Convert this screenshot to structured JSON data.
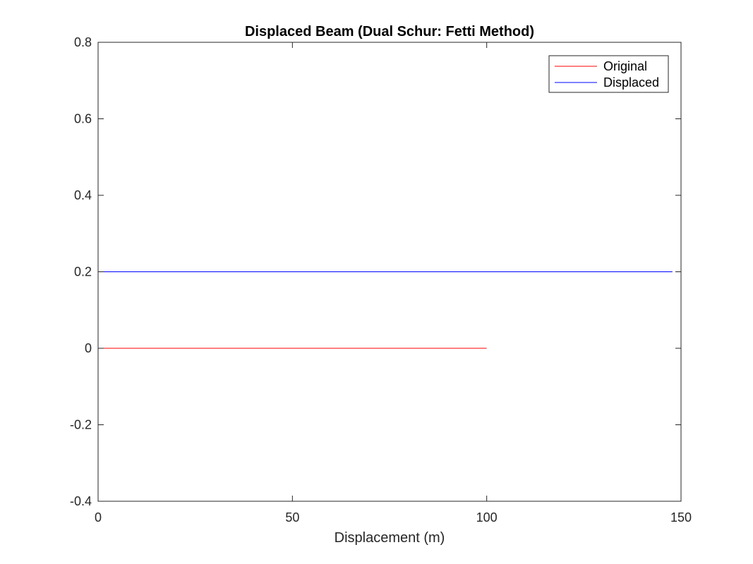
{
  "chart_data": {
    "type": "line",
    "title": "Displaced Beam (Dual Schur: Fetti Method)",
    "xlabel": "Displacement (m)",
    "ylabel": "",
    "xlim": [
      0,
      150
    ],
    "ylim": [
      -0.4,
      0.8
    ],
    "xticks": [
      0,
      50,
      100,
      150
    ],
    "xtick_labels": [
      "0",
      "50",
      "100",
      "150"
    ],
    "yticks": [
      -0.4,
      -0.2,
      0,
      0.2,
      0.4,
      0.6,
      0.8
    ],
    "ytick_labels": [
      "-0.4",
      "-0.2",
      "0",
      "0.2",
      "0.4",
      "0.6",
      "0.8"
    ],
    "grid": false,
    "legend_position": "top-right",
    "series": [
      {
        "name": "Original",
        "color": "#ff0000",
        "x": [
          0,
          100
        ],
        "y": [
          0,
          0
        ]
      },
      {
        "name": "Displaced",
        "color": "#0000ff",
        "x": [
          0,
          147.8
        ],
        "y": [
          0.2,
          0.2
        ]
      }
    ]
  }
}
